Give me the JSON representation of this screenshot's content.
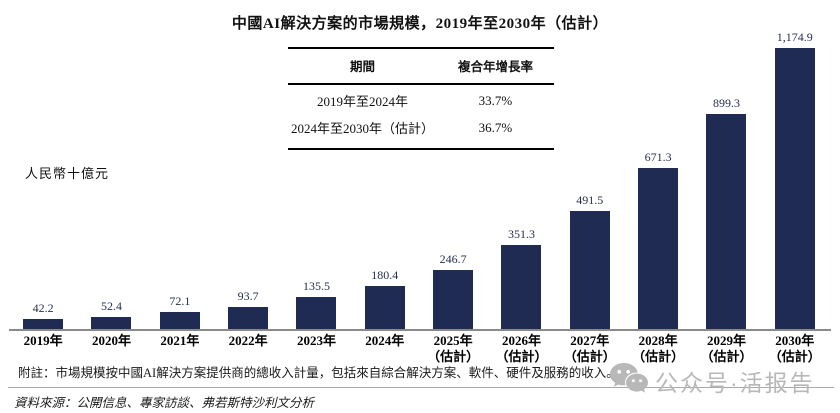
{
  "title": "中國AI解決方案的市場規模，2019年至2030年（估計）",
  "y_axis_label": "人民幣十億元",
  "cagr_table": {
    "headers": [
      "期間",
      "複合年增長率"
    ],
    "rows": [
      [
        "2019年至2024年",
        "33.7%"
      ],
      [
        "2024年至2030年（估計）",
        "36.7%"
      ]
    ]
  },
  "chart_data": {
    "type": "bar",
    "title": "中國AI解決方案的市場規模，2019年至2030年（估計）",
    "xlabel": "",
    "ylabel": "人民幣十億元",
    "categories": [
      "2019年",
      "2020年",
      "2021年",
      "2022年",
      "2023年",
      "2024年",
      "2025年\n（估計）",
      "2026年\n（估計）",
      "2027年\n（估計）",
      "2028年\n（估計）",
      "2029年\n（估計）",
      "2030年\n（估計）"
    ],
    "values": [
      42.2,
      52.4,
      72.1,
      93.7,
      135.5,
      180.4,
      246.7,
      351.3,
      491.5,
      671.3,
      899.3,
      1174.9
    ],
    "value_labels": [
      "42.2",
      "52.4",
      "72.1",
      "93.7",
      "135.5",
      "180.4",
      "246.7",
      "351.3",
      "491.5",
      "671.3",
      "899.3",
      "1,174.9"
    ],
    "bar_color": "#1f2b53",
    "ylim": [
      0,
      1200
    ],
    "grid": false,
    "legend": "none",
    "annotations": {
      "cagr_2019_2024": "33.7%",
      "cagr_2024_2030": "36.7%"
    }
  },
  "footnote": "附註：市場規模按中國AI解決方案提供商的總收入計量，包括來自綜合解決方案、軟件、硬件及服務的收入。",
  "source": "資料來源：公開信息、專家訪談、弗若斯特沙利文分析",
  "watermark": {
    "icon": "wechat-icon",
    "text": "公众号·活报告",
    "color": "#b8b8b8"
  },
  "colors": {
    "bar": "#1f2b53",
    "axis": "#8a8a8a",
    "value_label": "#26304e"
  }
}
